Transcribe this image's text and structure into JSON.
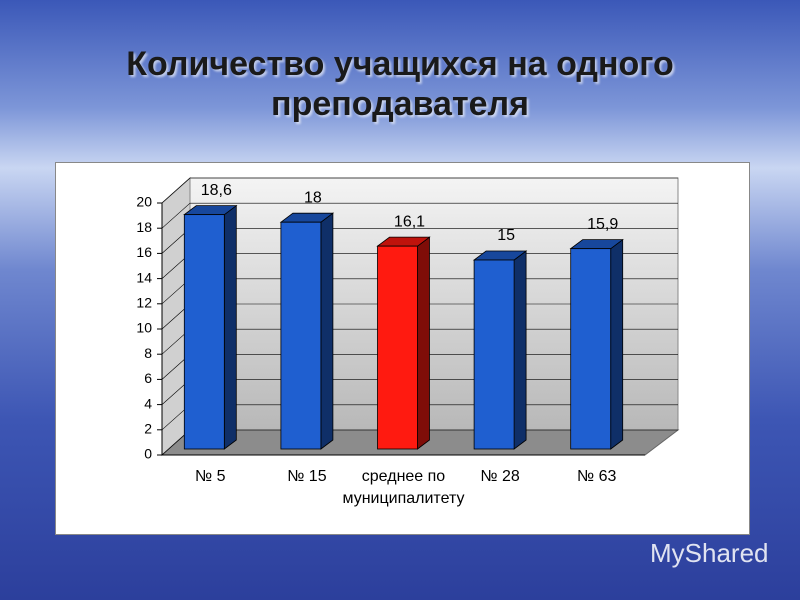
{
  "title": "Количество учащихся на одного преподавателя",
  "watermark": "MyShared",
  "chart_data": {
    "type": "bar3d",
    "categories": [
      "№ 5",
      "№ 15",
      "среднее по муниципалитету",
      "№ 28",
      "№ 63"
    ],
    "values": [
      18.6,
      18,
      16.1,
      15,
      15.9
    ],
    "value_labels": [
      "18,6",
      "18",
      "16,1",
      "15",
      "15,9"
    ],
    "colors": [
      "#1f5fd0",
      "#1f5fd0",
      "#ff1a10",
      "#1f5fd0",
      "#1f5fd0"
    ],
    "ylim": [
      0,
      20
    ],
    "yticks": [
      0,
      2,
      4,
      6,
      8,
      10,
      12,
      14,
      16,
      18,
      20
    ],
    "grid": true
  }
}
